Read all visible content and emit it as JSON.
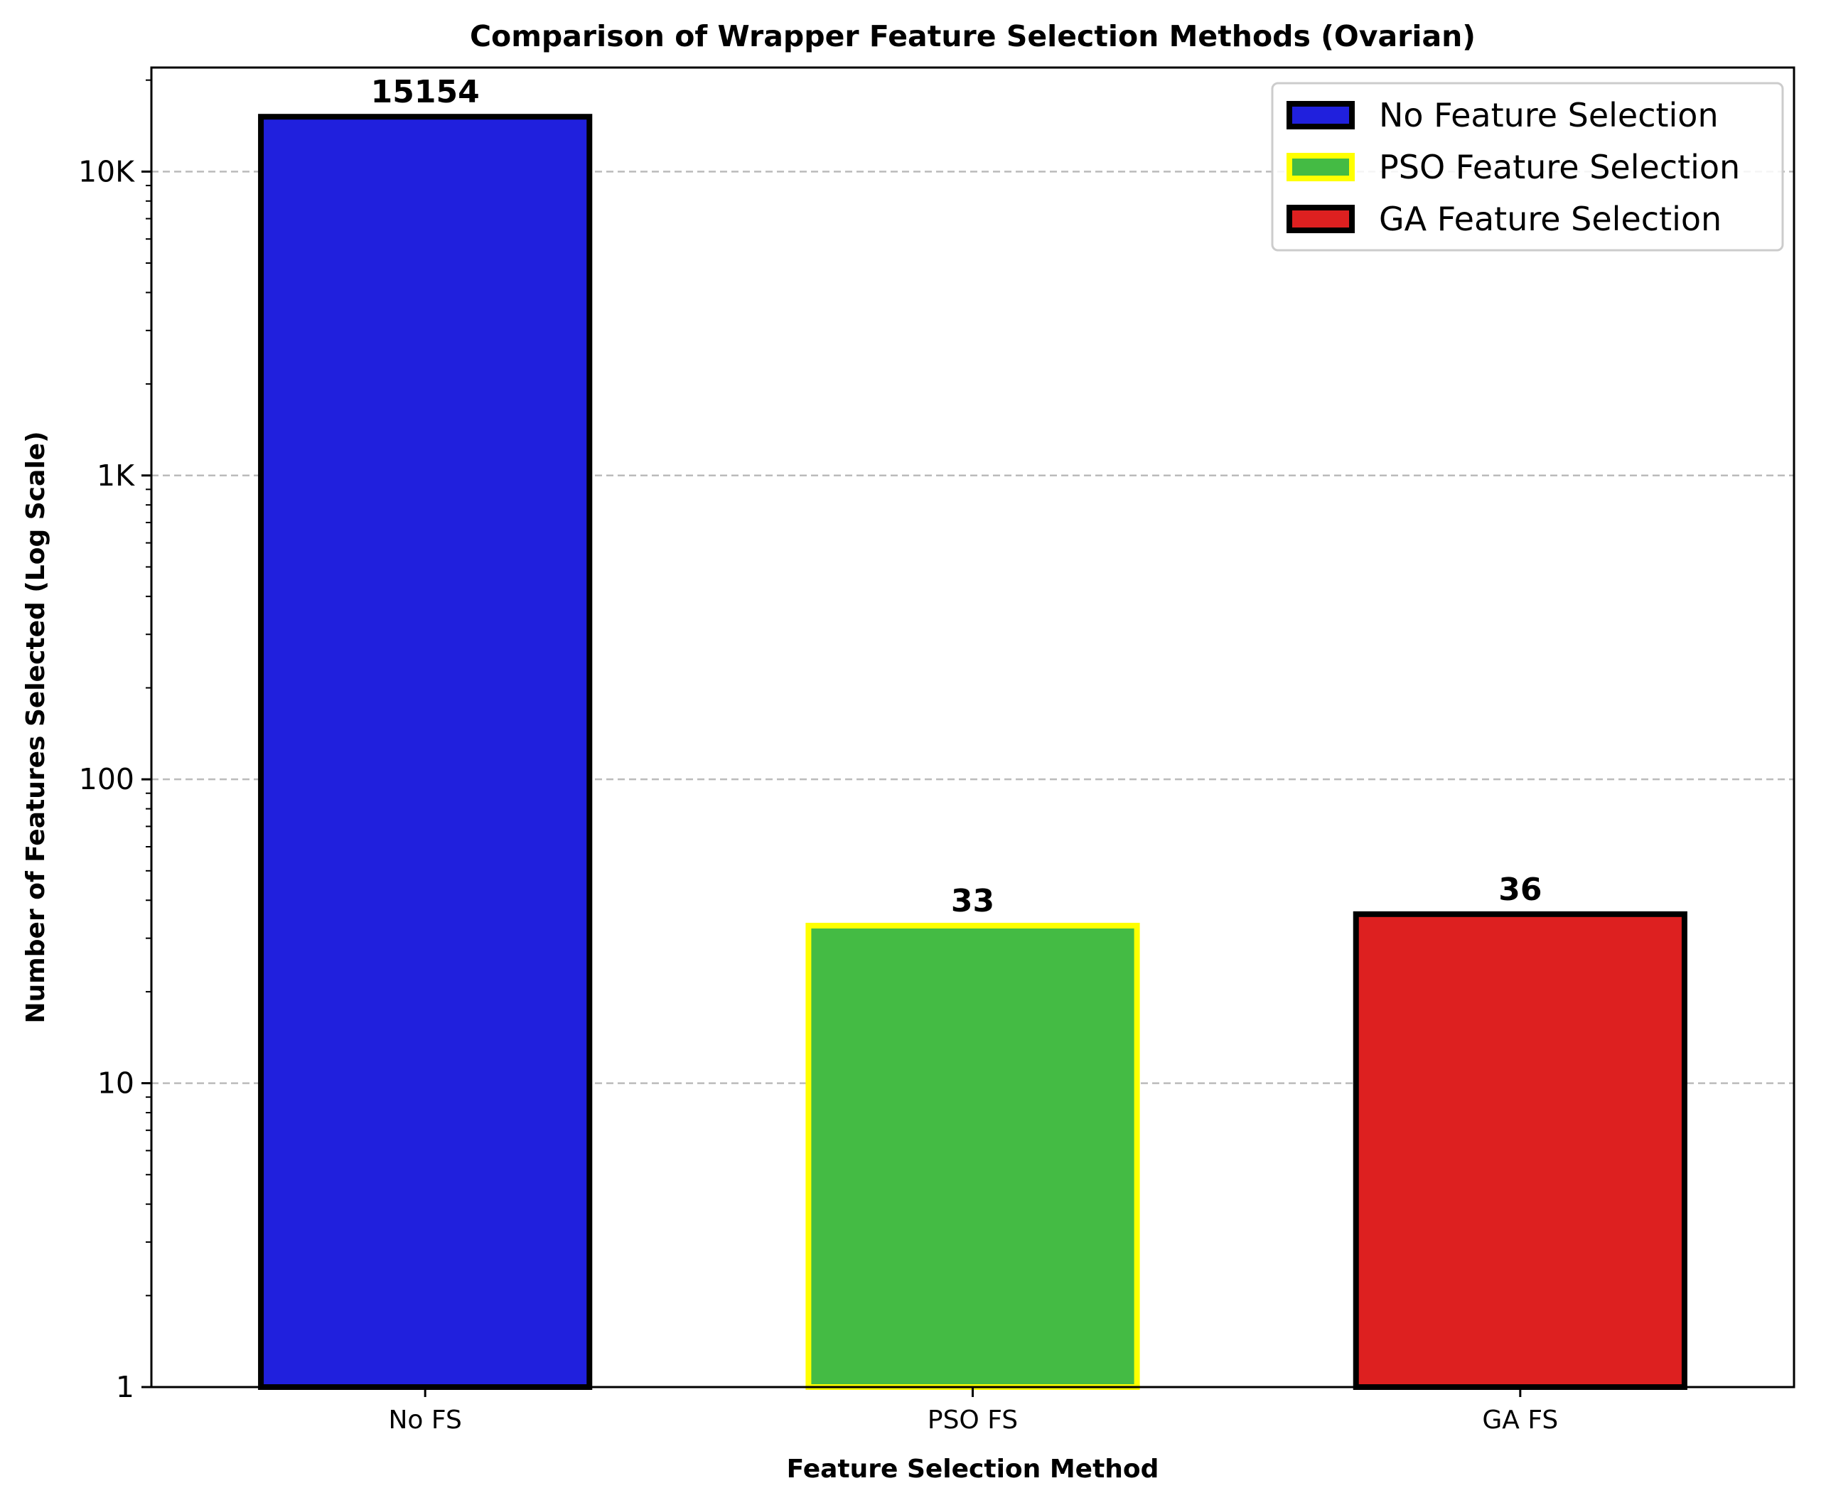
{
  "chart_data": {
    "type": "bar",
    "title": "Comparison of Wrapper Feature Selection Methods (Ovarian)",
    "xlabel": "Feature Selection Method",
    "ylabel": "Number of Features Selected (Log Scale)",
    "yscale": "log",
    "ylim": [
      1,
      22000
    ],
    "grid": "y-major-dashed",
    "categories": [
      "No FS",
      "PSO FS",
      "GA FS"
    ],
    "values": [
      15154,
      33,
      36
    ],
    "value_labels": [
      "15154",
      "33",
      "36"
    ],
    "yticks": [
      {
        "value": 1,
        "label": "1"
      },
      {
        "value": 10,
        "label": "10"
      },
      {
        "value": 100,
        "label": "100"
      },
      {
        "value": 1000,
        "label": "1K"
      },
      {
        "value": 10000,
        "label": "10K"
      }
    ],
    "bar_fill": [
      "#2020dd",
      "#44bb44",
      "#dd2020"
    ],
    "bar_edge": [
      "#000000",
      "#ffff00",
      "#000000"
    ],
    "legend_position": "top-right",
    "legend": [
      {
        "label": "No Feature Selection",
        "fill": "#2020dd",
        "edge": "#000000"
      },
      {
        "label": "PSO Feature Selection",
        "fill": "#44bb44",
        "edge": "#ffff00"
      },
      {
        "label": "GA Feature Selection",
        "fill": "#dd2020",
        "edge": "#000000"
      }
    ]
  }
}
